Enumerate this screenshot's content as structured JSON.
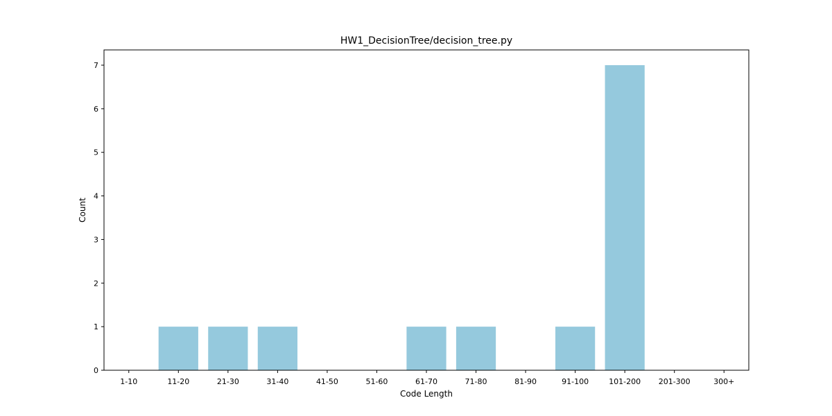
{
  "chart_data": {
    "type": "bar",
    "title": "HW1_DecisionTree/decision_tree.py",
    "xlabel": "Code Length",
    "ylabel": "Count",
    "categories": [
      "1-10",
      "11-20",
      "21-30",
      "31-40",
      "41-50",
      "51-60",
      "61-70",
      "71-80",
      "81-90",
      "91-100",
      "101-200",
      "201-300",
      "300+"
    ],
    "values": [
      0,
      1,
      1,
      1,
      0,
      0,
      1,
      1,
      0,
      1,
      7,
      0,
      0
    ],
    "ylim": [
      0,
      7.35
    ],
    "yticks": [
      0,
      1,
      2,
      3,
      4,
      5,
      6,
      7
    ],
    "bar_color": "#95c9dd",
    "grid": false,
    "legend": "none"
  }
}
